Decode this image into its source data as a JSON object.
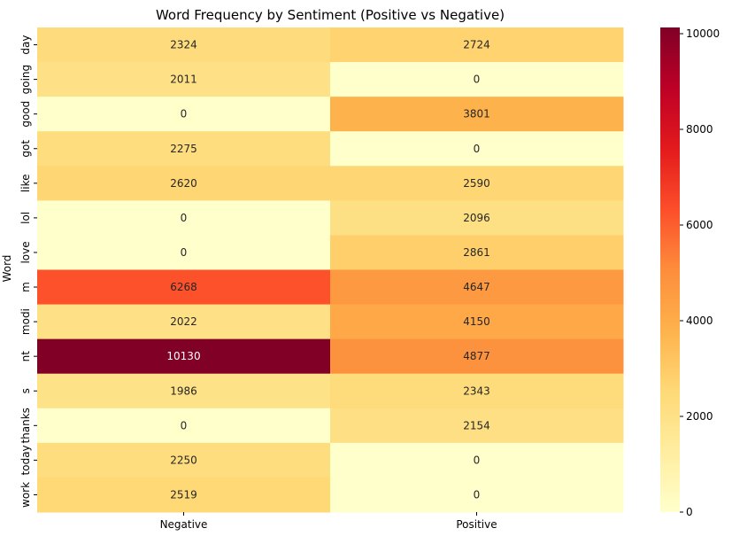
{
  "chart_data": {
    "type": "heatmap",
    "title": "Word Frequency by Sentiment (Positive vs Negative)",
    "ylabel": "Word",
    "xlabel": "",
    "columns": [
      "Negative",
      "Positive"
    ],
    "rows": [
      "day",
      "going",
      "good",
      "got",
      "like",
      "lol",
      "love",
      "m",
      "modi",
      "nt",
      "s",
      "thanks",
      "today",
      "work"
    ],
    "values": [
      [
        2324,
        2724
      ],
      [
        2011,
        0
      ],
      [
        0,
        3801
      ],
      [
        2275,
        0
      ],
      [
        2620,
        2590
      ],
      [
        0,
        2096
      ],
      [
        0,
        2861
      ],
      [
        6268,
        4647
      ],
      [
        2022,
        4150
      ],
      [
        10130,
        4877
      ],
      [
        1986,
        2343
      ],
      [
        0,
        2154
      ],
      [
        2250,
        0
      ],
      [
        2519,
        0
      ]
    ],
    "colorbar": {
      "min": 0,
      "max": 10130,
      "ticks": [
        0,
        2000,
        4000,
        6000,
        8000,
        10000
      ],
      "colormap": "YlOrRd"
    },
    "grid": false
  }
}
